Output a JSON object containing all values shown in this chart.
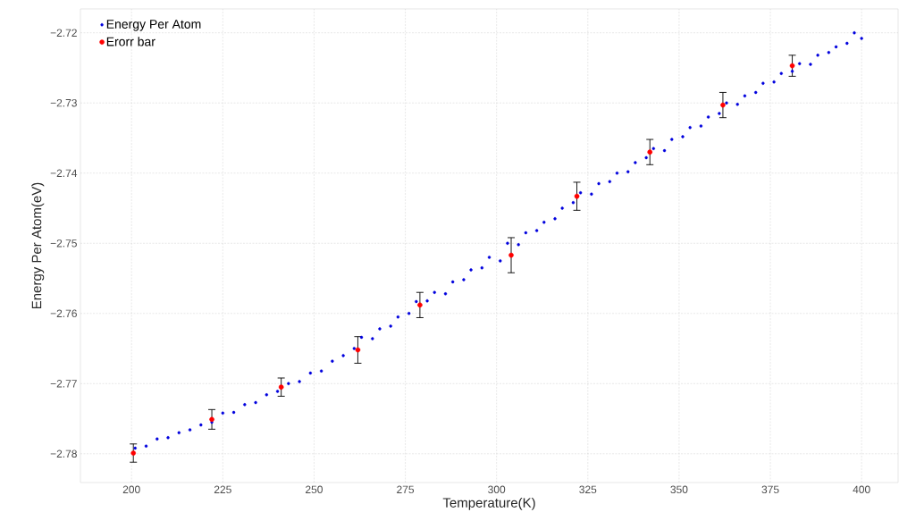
{
  "chart_data": {
    "type": "scatter",
    "xlabel": "Temperature(K)",
    "ylabel": "Energy Per Atom(eV)",
    "xlim": [
      186,
      410
    ],
    "ylim": [
      -2.7841,
      -2.7166
    ],
    "xticks": [
      200,
      225,
      250,
      275,
      300,
      325,
      350,
      375,
      400
    ],
    "yticks": [
      {
        "value": -2.78,
        "label": "−2.78"
      },
      {
        "value": -2.77,
        "label": "−2.77"
      },
      {
        "value": -2.76,
        "label": "−2.76"
      },
      {
        "value": -2.75,
        "label": "−2.75"
      },
      {
        "value": -2.74,
        "label": "−2.74"
      },
      {
        "value": -2.73,
        "label": "−2.73"
      },
      {
        "value": -2.72,
        "label": "−2.72"
      }
    ],
    "grid": true,
    "legend": "top left",
    "marker": "circle",
    "series": [
      {
        "name": "Energy Per Atom",
        "color": "#0000dd",
        "x": [
          201,
          204,
          207,
          210,
          213,
          216,
          219,
          222,
          225,
          228,
          231,
          234,
          237,
          240,
          243,
          246,
          249,
          252,
          255,
          258,
          261,
          263,
          266,
          268,
          271,
          273,
          276,
          278,
          281,
          283,
          286,
          288,
          291,
          293,
          296,
          298,
          301,
          303,
          306,
          308,
          311,
          313,
          316,
          318,
          321,
          323,
          326,
          328,
          331,
          333,
          336,
          338,
          341,
          343,
          346,
          348,
          351,
          353,
          356,
          358,
          361,
          363,
          366,
          368,
          371,
          373,
          376,
          378,
          381,
          383,
          386,
          388,
          391,
          393,
          396,
          398,
          400
        ],
        "values": [
          -2.7792,
          -2.7789,
          -2.7779,
          -2.7777,
          -2.777,
          -2.7766,
          -2.7759,
          -2.7755,
          -2.7742,
          -2.7741,
          -2.773,
          -2.7727,
          -2.7716,
          -2.7711,
          -2.77,
          -2.7697,
          -2.7685,
          -2.7682,
          -2.7668,
          -2.766,
          -2.765,
          -2.7634,
          -2.7636,
          -2.7622,
          -2.7618,
          -2.7605,
          -2.76,
          -2.7583,
          -2.7582,
          -2.757,
          -2.7572,
          -2.7555,
          -2.7552,
          -2.7538,
          -2.7535,
          -2.752,
          -2.7525,
          -2.75,
          -2.7502,
          -2.7485,
          -2.7482,
          -2.747,
          -2.7465,
          -2.745,
          -2.7442,
          -2.7428,
          -2.743,
          -2.7415,
          -2.7412,
          -2.74,
          -2.7398,
          -2.7385,
          -2.7378,
          -2.7365,
          -2.7368,
          -2.7352,
          -2.7348,
          -2.7335,
          -2.7333,
          -2.732,
          -2.7315,
          -2.73,
          -2.7302,
          -2.729,
          -2.7285,
          -2.7272,
          -2.727,
          -2.7258,
          -2.7255,
          -2.7244,
          -2.7245,
          -2.7232,
          -2.7228,
          -2.722,
          -2.7215,
          -2.72,
          -2.7208
        ]
      },
      {
        "name": "Erorr bar",
        "color": "#ff0000",
        "x": [
          200.5,
          222,
          241,
          262,
          279,
          304,
          322,
          342,
          362,
          381
        ],
        "values": [
          -2.7799,
          -2.7751,
          -2.7705,
          -2.7652,
          -2.7588,
          -2.7517,
          -2.7433,
          -2.737,
          -2.7303,
          -2.7247
        ],
        "errors": [
          0.0013,
          0.0014,
          0.0013,
          0.0019,
          0.0018,
          0.0025,
          0.002,
          0.0018,
          0.0018,
          0.0015
        ]
      }
    ]
  }
}
